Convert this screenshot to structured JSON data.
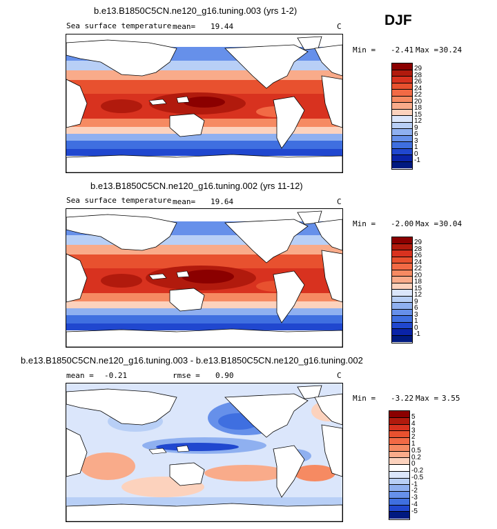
{
  "season": "DJF",
  "panels": [
    {
      "title": "b.e13.B1850C5CN.ne120_g16.tuning.003 (yrs 1-2)",
      "variable": "Sea surface temperature",
      "mean_label": "mean=",
      "mean_value": "19.44",
      "units": "C",
      "min_label": "Min =",
      "min_value": "-2.41",
      "max_label": "Max =",
      "max_value": "30.24",
      "levels": [
        "29",
        "28",
        "26",
        "24",
        "22",
        "20",
        "18",
        "15",
        "12",
        "9",
        "6",
        "3",
        "1",
        "0",
        "-1"
      ],
      "colors": [
        "#8b0000",
        "#b11a0d",
        "#d8321f",
        "#e8512f",
        "#f26a45",
        "#f68a62",
        "#f9ab8a",
        "#fcd2bd",
        "#dbe6fb",
        "#b8cff6",
        "#8fb0f0",
        "#6690ea",
        "#3f6fe0",
        "#2047cf",
        "#0a23a8",
        "#001a80"
      ]
    },
    {
      "title": "b.e13.B1850C5CN.ne120_g16.tuning.002 (yrs 11-12)",
      "variable": "Sea surface temperature",
      "mean_label": "mean=",
      "mean_value": "19.64",
      "units": "C",
      "min_label": "Min =",
      "min_value": "-2.00",
      "max_label": "Max =",
      "max_value": "30.04",
      "levels": [
        "29",
        "28",
        "26",
        "24",
        "22",
        "20",
        "18",
        "15",
        "12",
        "9",
        "6",
        "3",
        "1",
        "0",
        "-1"
      ],
      "colors": [
        "#8b0000",
        "#b11a0d",
        "#d8321f",
        "#e8512f",
        "#f26a45",
        "#f68a62",
        "#f9ab8a",
        "#fcd2bd",
        "#dbe6fb",
        "#b8cff6",
        "#8fb0f0",
        "#6690ea",
        "#3f6fe0",
        "#2047cf",
        "#0a23a8",
        "#001a80"
      ]
    },
    {
      "title": "b.e13.B1850C5CN.ne120_g16.tuning.003 - b.e13.B1850C5CN.ne120_g16.tuning.002",
      "mean_label": "mean =",
      "mean_value": "-0.21",
      "rmse_label": "rmse =",
      "rmse_value": "0.90",
      "units": "C",
      "min_label": "Min =",
      "min_value": "-3.22",
      "max_label": "Max =",
      "max_value": "3.55",
      "levels": [
        "5",
        "4",
        "3",
        "2",
        "1",
        "0.5",
        "0.2",
        "0",
        "-0.2",
        "-0.5",
        "-1",
        "-2",
        "-3",
        "-4",
        "-5"
      ],
      "colors": [
        "#8b0000",
        "#b11a0d",
        "#d8321f",
        "#e8512f",
        "#f26a45",
        "#f68a62",
        "#f9ab8a",
        "#fcd2bd",
        "#ffffff",
        "#dbe6fb",
        "#b8cff6",
        "#8fb0f0",
        "#6690ea",
        "#3f6fe0",
        "#2047cf",
        "#001a80"
      ]
    }
  ]
}
